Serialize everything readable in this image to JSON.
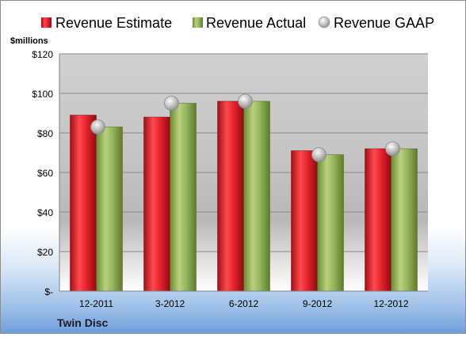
{
  "chart_data": {
    "type": "bar",
    "unit_label": "$millions",
    "company": "Twin Disc",
    "categories": [
      "12-2011",
      "3-2012",
      "6-2012",
      "9-2012",
      "12-2012"
    ],
    "series": [
      {
        "name": "Revenue Estimate",
        "kind": "bar",
        "color": "#e0202a",
        "values": [
          89,
          88,
          96,
          71,
          72
        ]
      },
      {
        "name": "Revenue Actual",
        "kind": "bar",
        "color": "#93b15a",
        "values": [
          83,
          95,
          96,
          69,
          72
        ]
      },
      {
        "name": "Revenue GAAP",
        "kind": "marker",
        "color": "#c4c4c4",
        "values": [
          83,
          95,
          96,
          69,
          72
        ]
      }
    ],
    "ylim": [
      0,
      120
    ],
    "yticks": [
      0,
      20,
      40,
      60,
      80,
      100,
      120
    ],
    "ytick_labels": [
      "$-",
      "$20",
      "$40",
      "$60",
      "$80",
      "$100",
      "$120"
    ],
    "legend_position": "top",
    "grid": true
  }
}
